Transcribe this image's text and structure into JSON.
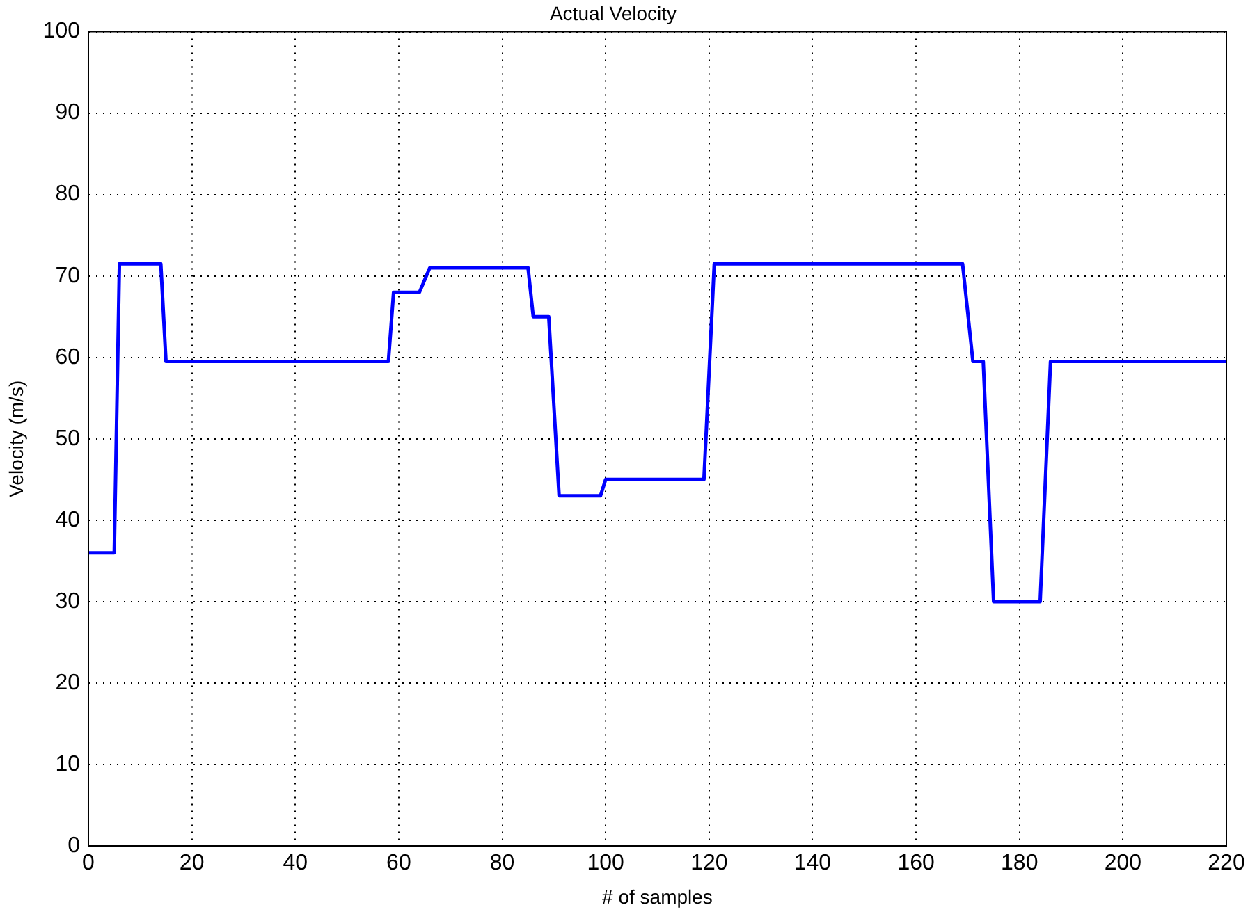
{
  "chart_data": {
    "type": "line",
    "title": "Actual Velocity",
    "xlabel": "# of samples",
    "ylabel": "Velocity (m/s)",
    "series": [
      {
        "color": "#0000ff",
        "x": [
          0,
          5,
          6,
          14,
          15,
          58,
          59,
          64,
          66,
          85,
          86,
          89,
          91,
          99,
          100,
          119,
          121,
          169,
          171,
          173,
          175,
          184,
          186,
          220
        ],
        "values": [
          36,
          36,
          71.5,
          71.5,
          59.5,
          59.5,
          68,
          68,
          71,
          71,
          65,
          65,
          43,
          43,
          45,
          45,
          71.5,
          71.5,
          59.5,
          59.5,
          30,
          30,
          59.5,
          59.5
        ]
      }
    ],
    "xlim": [
      0,
      220
    ],
    "xticks": [
      0,
      20,
      40,
      60,
      80,
      100,
      120,
      140,
      160,
      180,
      200,
      220
    ],
    "ylim": [
      0,
      100
    ],
    "yticks": [
      0,
      10,
      20,
      30,
      40,
      50,
      60,
      70,
      80,
      90,
      100
    ],
    "grid": true,
    "legend": false,
    "marker": "none",
    "line_style": "solid"
  }
}
